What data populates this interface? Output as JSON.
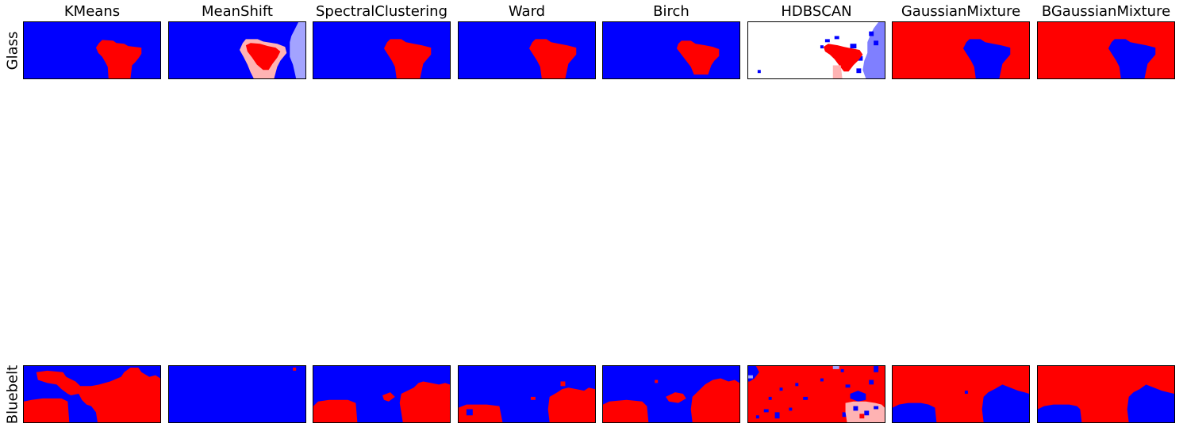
{
  "columns": [
    "KMeans",
    "MeanShift",
    "SpectralClustering",
    "Ward",
    "Birch",
    "HDBSCAN",
    "GaussianMixture",
    "BGaussianMixture"
  ],
  "rows": [
    "Glass",
    "Bluebelt"
  ],
  "colors": {
    "blue": "#0000ff",
    "red": "#ff0000",
    "light_pink": "#ffb3b3",
    "light_blue": "#a3a3ff",
    "white": "#ffffff",
    "medium_blue": "#7f7fff"
  },
  "chart_data": [
    {
      "type": "heatmap",
      "row": "Glass",
      "column": "KMeans",
      "background": "blue",
      "regions": [
        {
          "label": "red",
          "description": "inverted triangle blob, center"
        }
      ]
    },
    {
      "type": "heatmap",
      "row": "Glass",
      "column": "MeanShift",
      "background": "blue",
      "regions": [
        {
          "label": "red",
          "description": "triangle core"
        },
        {
          "label": "light_pink",
          "description": "ring around triangle"
        },
        {
          "label": "light_blue",
          "description": "right edge strip"
        }
      ]
    },
    {
      "type": "heatmap",
      "row": "Glass",
      "column": "SpectralClustering",
      "background": "blue",
      "regions": [
        {
          "label": "red",
          "description": "inverted triangle blob"
        }
      ]
    },
    {
      "type": "heatmap",
      "row": "Glass",
      "column": "Ward",
      "background": "blue",
      "regions": [
        {
          "label": "red",
          "description": "inverted triangle blob"
        }
      ]
    },
    {
      "type": "heatmap",
      "row": "Glass",
      "column": "Birch",
      "background": "blue",
      "regions": [
        {
          "label": "red",
          "description": "inverted triangle blob"
        }
      ]
    },
    {
      "type": "heatmap",
      "row": "Glass",
      "column": "HDBSCAN",
      "background": "white",
      "regions": [
        {
          "label": "red",
          "description": "triangle with speckles"
        },
        {
          "label": "blue",
          "description": "scattered specks"
        },
        {
          "label": "medium_blue",
          "description": "right edge strip"
        }
      ]
    },
    {
      "type": "heatmap",
      "row": "Glass",
      "column": "GaussianMixture",
      "background": "red",
      "regions": [
        {
          "label": "blue",
          "description": "inverted triangle blob"
        }
      ]
    },
    {
      "type": "heatmap",
      "row": "Glass",
      "column": "BGaussianMixture",
      "background": "red",
      "regions": [
        {
          "label": "blue",
          "description": "inverted triangle blob"
        }
      ]
    },
    {
      "type": "heatmap",
      "row": "Bluebelt",
      "column": "KMeans",
      "background": "blue",
      "regions": [
        {
          "label": "red",
          "description": "bottom-left block and right half"
        }
      ]
    },
    {
      "type": "heatmap",
      "row": "Bluebelt",
      "column": "MeanShift",
      "background": "blue",
      "regions": []
    },
    {
      "type": "heatmap",
      "row": "Bluebelt",
      "column": "SpectralClustering",
      "background": "blue",
      "regions": [
        {
          "label": "red",
          "description": "bottom-left block and bottom-right region"
        }
      ]
    },
    {
      "type": "heatmap",
      "row": "Bluebelt",
      "column": "Ward",
      "background": "blue",
      "regions": [
        {
          "label": "red",
          "description": "bottom-left strip and bottom-right region"
        }
      ]
    },
    {
      "type": "heatmap",
      "row": "Bluebelt",
      "column": "Birch",
      "background": "blue",
      "regions": [
        {
          "label": "red",
          "description": "bottom-left block and bottom-right region"
        }
      ]
    },
    {
      "type": "heatmap",
      "row": "Bluebelt",
      "column": "HDBSCAN",
      "background": "red",
      "regions": [
        {
          "label": "blue",
          "description": "scattered specks"
        },
        {
          "label": "light_pink",
          "description": "bottom-right patch"
        }
      ]
    },
    {
      "type": "heatmap",
      "row": "Bluebelt",
      "column": "GaussianMixture",
      "background": "red",
      "regions": [
        {
          "label": "blue",
          "description": "bottom-left and bottom-right blocks"
        }
      ]
    },
    {
      "type": "heatmap",
      "row": "Bluebelt",
      "column": "BGaussianMixture",
      "background": "red",
      "regions": [
        {
          "label": "blue",
          "description": "bottom-left and bottom-right blocks"
        }
      ]
    }
  ]
}
